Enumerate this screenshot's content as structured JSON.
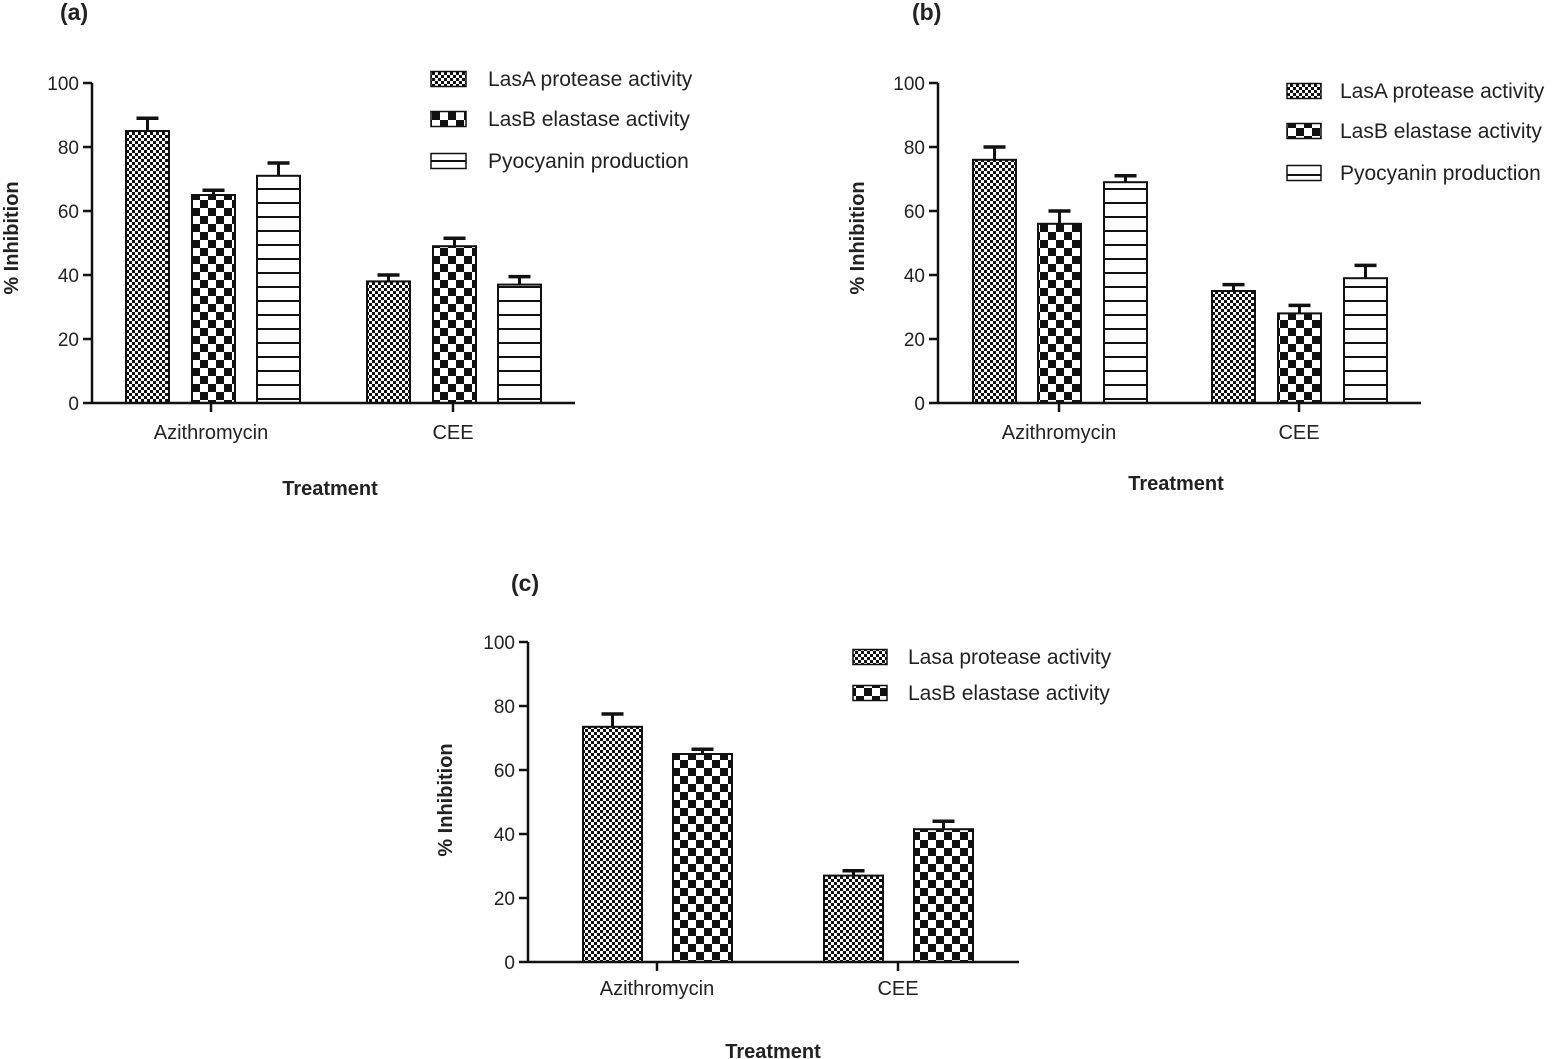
{
  "colors": {
    "ink": "#111111",
    "bar_fill": "#ffffff"
  },
  "chart_data": [
    {
      "type": "bar",
      "panel_label": "(a)",
      "categories": [
        "Azithromycin",
        "CEE"
      ],
      "xlabel": "Treatment",
      "ylabel": "% Inhibition",
      "ylim": [
        0,
        100
      ],
      "yticks": [
        "0",
        "20",
        "40",
        "60",
        "80",
        "100"
      ],
      "legend_position": "top-right",
      "series": [
        {
          "name": "LasA protease activity",
          "pattern": "fine-check",
          "values": [
            85,
            38
          ],
          "errors": [
            4,
            2
          ]
        },
        {
          "name": "LasB elastase activity",
          "pattern": "coarse-check",
          "values": [
            65,
            49
          ],
          "errors": [
            1.5,
            2.5
          ]
        },
        {
          "name": "Pyocyanin production",
          "pattern": "horizontal-lines",
          "values": [
            71,
            37
          ],
          "errors": [
            4,
            2.5
          ]
        }
      ]
    },
    {
      "type": "bar",
      "panel_label": "(b)",
      "categories": [
        "Azithromycin",
        "CEE"
      ],
      "xlabel": "Treatment",
      "ylabel": "% Inhibition",
      "ylim": [
        0,
        100
      ],
      "yticks": [
        "0",
        "20",
        "40",
        "60",
        "80",
        "100"
      ],
      "legend_position": "top-right",
      "series": [
        {
          "name": "LasA protease activity",
          "pattern": "fine-check",
          "values": [
            76,
            35
          ],
          "errors": [
            4,
            2
          ]
        },
        {
          "name": "LasB elastase activity",
          "pattern": "coarse-check",
          "values": [
            56,
            28
          ],
          "errors": [
            4,
            2.5
          ]
        },
        {
          "name": "Pyocyanin production",
          "pattern": "horizontal-lines",
          "values": [
            69,
            39
          ],
          "errors": [
            2,
            4
          ]
        }
      ]
    },
    {
      "type": "bar",
      "panel_label": "(c)",
      "categories": [
        "Azithromycin",
        "CEE"
      ],
      "xlabel": "Treatment",
      "ylabel": "% Inhibition",
      "ylim": [
        0,
        100
      ],
      "yticks": [
        "0",
        "20",
        "40",
        "60",
        "80",
        "100"
      ],
      "legend_position": "top-right",
      "series": [
        {
          "name": "Lasa protease activity",
          "pattern": "fine-check",
          "values": [
            73.5,
            27
          ],
          "errors": [
            4,
            1.5
          ]
        },
        {
          "name": "LasB elastase activity",
          "pattern": "coarse-check",
          "values": [
            65,
            41.5
          ],
          "errors": [
            1.5,
            2.5
          ]
        }
      ]
    }
  ]
}
